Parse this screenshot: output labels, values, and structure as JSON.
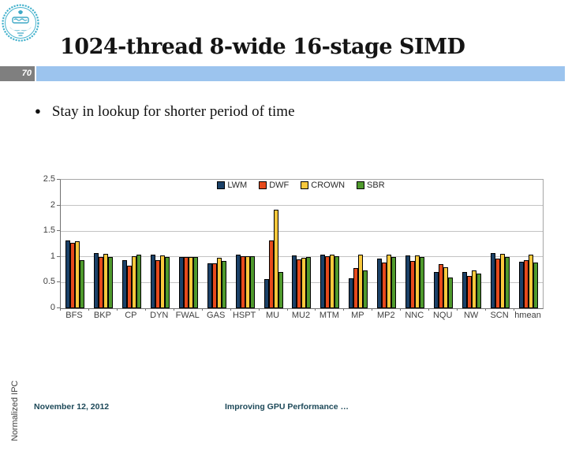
{
  "slide": {
    "page_number": "70",
    "title": "1024-thread 8-wide 16-stage SIMD",
    "bullet": "Stay in lookup for shorter period of time",
    "footer": {
      "date": "November 12, 2012",
      "deck_title": "Improving GPU Performance …"
    }
  },
  "colors": {
    "band_blue": "#9cc4ee",
    "page_box_gray": "#7f7f7f",
    "footer_teal": "#1c4858",
    "logo_teal": "#3fa9c6"
  },
  "chart_data": {
    "type": "bar",
    "title": "",
    "xlabel": "",
    "ylabel": "Normalized IPC",
    "ylim": [
      0,
      2.5
    ],
    "yticks": [
      0,
      0.5,
      1,
      1.5,
      2,
      2.5
    ],
    "ytick_labels": [
      "0",
      "0.5",
      "1",
      "1.5",
      "2",
      "2.5"
    ],
    "grid": true,
    "legend_position": "top-center",
    "categories": [
      "BFS",
      "BKP",
      "CP",
      "DYN",
      "FWAL",
      "GAS",
      "HSPT",
      "MU",
      "MU2",
      "MTM",
      "MP",
      "MP2",
      "NNC",
      "NQU",
      "NW",
      "SCN",
      "hmean"
    ],
    "series": [
      {
        "name": "LWM",
        "color": "#1b4168",
        "values": [
          1.32,
          1.07,
          0.94,
          1.05,
          0.99,
          0.88,
          1.04,
          0.57,
          1.02,
          1.05,
          0.59,
          0.96,
          1.03,
          0.71,
          0.71,
          1.08,
          0.9
        ]
      },
      {
        "name": "DWF",
        "color": "#e64a1c",
        "values": [
          1.27,
          1.0,
          0.83,
          0.93,
          1.0,
          0.87,
          1.01,
          1.32,
          0.95,
          1.01,
          0.78,
          0.89,
          0.92,
          0.86,
          0.63,
          0.97,
          0.93
        ]
      },
      {
        "name": "CROWN",
        "color": "#f9c83c",
        "values": [
          1.31,
          1.06,
          1.01,
          1.02,
          1.0,
          0.98,
          1.01,
          1.92,
          0.98,
          1.05,
          1.05,
          1.05,
          1.03,
          0.8,
          0.73,
          1.06,
          1.04
        ]
      },
      {
        "name": "SBR",
        "color": "#4f9a2d",
        "values": [
          0.93,
          1.0,
          1.05,
          1.0,
          1.0,
          0.92,
          1.01,
          0.71,
          1.0,
          1.01,
          0.73,
          1.0,
          1.0,
          0.6,
          0.68,
          1.0,
          0.89
        ]
      }
    ]
  }
}
